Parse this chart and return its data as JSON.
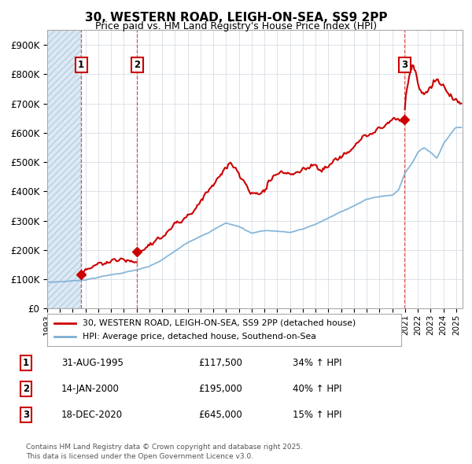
{
  "title": "30, WESTERN ROAD, LEIGH-ON-SEA, SS9 2PP",
  "subtitle": "Price paid vs. HM Land Registry's House Price Index (HPI)",
  "ylim": [
    0,
    950000
  ],
  "yticks": [
    0,
    100000,
    200000,
    300000,
    400000,
    500000,
    600000,
    700000,
    800000,
    900000
  ],
  "ytick_labels": [
    "£0",
    "£100K",
    "£200K",
    "£300K",
    "£400K",
    "£500K",
    "£600K",
    "£700K",
    "£800K",
    "£900K"
  ],
  "xlim_start": 1993.0,
  "xlim_end": 2025.5,
  "hpi_color": "#7bafd4",
  "price_color": "#cc0000",
  "background_color": "#ffffff",
  "grid_color": "#d0d8e0",
  "sale1_date": 1995.66,
  "sale1_price": 117500,
  "sale1_label": "1",
  "sale2_date": 2000.04,
  "sale2_price": 195000,
  "sale2_label": "2",
  "sale3_date": 2020.96,
  "sale3_price": 645000,
  "sale3_label": "3",
  "legend_line1": "30, WESTERN ROAD, LEIGH-ON-SEA, SS9 2PP (detached house)",
  "legend_line2": "HPI: Average price, detached house, Southend-on-Sea",
  "table_entries": [
    {
      "num": "1",
      "date": "31-AUG-1995",
      "price": "£117,500",
      "hpi": "34% ↑ HPI"
    },
    {
      "num": "2",
      "date": "14-JAN-2000",
      "price": "£195,000",
      "hpi": "40% ↑ HPI"
    },
    {
      "num": "3",
      "date": "18-DEC-2020",
      "price": "£645,000",
      "hpi": "15% ↑ HPI"
    }
  ],
  "footer": "Contains HM Land Registry data © Crown copyright and database right 2025.\nThis data is licensed under the Open Government Licence v3.0."
}
